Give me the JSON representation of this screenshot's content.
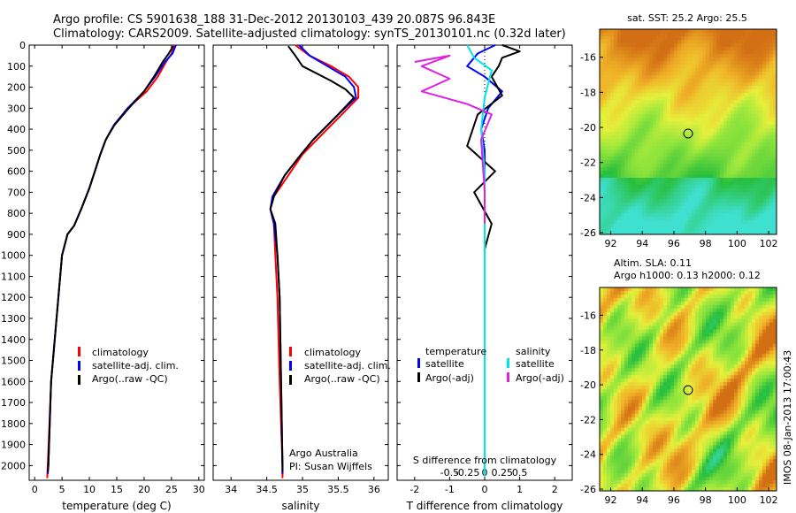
{
  "header": {
    "line1": "Argo profile: CS 5901638_188 31-Dec-2012 20130103_439 20.087S 96.843E",
    "line2": "Climatology: CARS2009. Satellite-adjusted climatology: synTS_20130101.nc (0.32d later)"
  },
  "side_text": "IMOS 08-Jan-2013 17:00:43",
  "colors": {
    "climatology": "#ff0000",
    "satellite": "#0000ff",
    "argo": "#000000",
    "sal_satellite": "#00e5e5",
    "sal_argo": "#e020e0"
  },
  "chart_data": [
    {
      "type": "line",
      "panel": "temperature",
      "xlabel": "temperature (deg C)",
      "ylabel": "",
      "xlim": [
        -1,
        31
      ],
      "ylim": [
        2070,
        0
      ],
      "xticks": [
        0,
        5,
        10,
        15,
        20,
        25,
        30
      ],
      "xtick_labels": [
        "0",
        "5",
        "10",
        "15",
        "20",
        "25",
        "30"
      ],
      "yticks": [
        0,
        100,
        200,
        300,
        400,
        500,
        600,
        700,
        800,
        900,
        1000,
        1100,
        1200,
        1300,
        1400,
        1500,
        1600,
        1700,
        1800,
        1900,
        2000
      ],
      "ytick_labels": [
        "0",
        "100",
        "200",
        "300",
        "400",
        "500",
        "600",
        "700",
        "800",
        "900",
        "1000",
        "1100",
        "1200",
        "1300",
        "1400",
        "1500",
        "1600",
        "1700",
        "1800",
        "1900",
        "2000"
      ],
      "legend": [
        "climatology",
        "satellite-adj. clim.",
        "Argo(..raw -QC)"
      ],
      "series": [
        {
          "name": "climatology",
          "color": "#ff0000",
          "x": [
            25.5,
            25.0,
            24.0,
            22.5,
            20.5,
            17.0,
            14.5,
            13.0,
            12.0,
            11.0,
            10.0,
            8.5,
            7.2,
            6.0,
            5.0,
            3.0,
            2.4,
            2.3
          ],
          "y": [
            0,
            40,
            80,
            150,
            220,
            300,
            380,
            450,
            520,
            600,
            680,
            780,
            860,
            900,
            1000,
            1600,
            2000,
            2060
          ]
        },
        {
          "name": "satellite-adj. clim.",
          "color": "#0000ff",
          "x": [
            25.8,
            25.2,
            23.8,
            22.0,
            20.0,
            17.0,
            14.5,
            13.0,
            12.0,
            11.0,
            10.0,
            8.5,
            7.2,
            6.0,
            5.0,
            3.0,
            2.5,
            2.4
          ],
          "y": [
            0,
            40,
            80,
            150,
            220,
            300,
            380,
            450,
            520,
            600,
            680,
            780,
            860,
            900,
            1000,
            1600,
            2000,
            2040
          ]
        },
        {
          "name": "Argo(..raw -QC)",
          "color": "#000000",
          "x": [
            25.3,
            24.5,
            23.4,
            21.8,
            20.0,
            17.2,
            14.6,
            13.0,
            12.0,
            11.0,
            10.0,
            8.5,
            7.2,
            6.0,
            5.0,
            3.0,
            2.5,
            2.4
          ],
          "y": [
            5,
            40,
            80,
            150,
            220,
            300,
            380,
            450,
            520,
            600,
            680,
            780,
            860,
            900,
            1000,
            1600,
            2000,
            2030
          ]
        }
      ]
    },
    {
      "type": "line",
      "panel": "salinity",
      "xlabel": "salinity",
      "xlim": [
        33.75,
        36.2
      ],
      "ylim": [
        2070,
        0
      ],
      "xticks": [
        34,
        34.5,
        35,
        35.5,
        36
      ],
      "xtick_labels": [
        "34",
        "34.5",
        "35",
        "35.5",
        "36"
      ],
      "legend": [
        "climatology",
        "satellite-adj. clim.",
        "Argo(..raw -QC)"
      ],
      "annotation": [
        "Argo Australia",
        "PI: Susan Wijffels"
      ],
      "series": [
        {
          "name": "climatology",
          "color": "#ff0000",
          "x": [
            34.9,
            35.1,
            35.4,
            35.65,
            35.78,
            35.78,
            35.55,
            35.2,
            35.0,
            34.8,
            34.6,
            34.55,
            34.6,
            34.62,
            34.65,
            34.68,
            34.72,
            34.72
          ],
          "y": [
            0,
            50,
            100,
            150,
            200,
            250,
            330,
            450,
            520,
            620,
            720,
            780,
            850,
            1000,
            1200,
            1600,
            2000,
            2060
          ]
        },
        {
          "name": "satellite-adj. clim.",
          "color": "#0000ff",
          "x": [
            34.95,
            35.1,
            35.35,
            35.6,
            35.72,
            35.75,
            35.5,
            35.15,
            34.98,
            34.75,
            34.58,
            34.55,
            34.6,
            34.65,
            34.68,
            34.7,
            34.72,
            34.72
          ],
          "y": [
            0,
            50,
            100,
            150,
            200,
            250,
            330,
            450,
            520,
            620,
            720,
            780,
            850,
            1000,
            1200,
            1600,
            2000,
            2040
          ]
        },
        {
          "name": "Argo(..raw -QC)",
          "color": "#000000",
          "x": [
            34.8,
            34.9,
            35.0,
            35.4,
            35.6,
            35.72,
            35.5,
            35.15,
            34.98,
            34.75,
            34.6,
            34.55,
            34.62,
            34.65,
            34.68,
            34.7,
            34.72,
            34.72
          ],
          "y": [
            5,
            50,
            100,
            170,
            210,
            250,
            330,
            450,
            520,
            620,
            720,
            780,
            850,
            1000,
            1200,
            1600,
            2000,
            2030
          ]
        }
      ]
    },
    {
      "type": "line",
      "panel": "difference",
      "xlabel": "T difference from climatology",
      "top_label": "S difference from climatology",
      "xlim": [
        -2.5,
        2.5
      ],
      "ylim": [
        2070,
        0
      ],
      "xticks": [
        -2,
        -1,
        0,
        1,
        2
      ],
      "xtick_labels": [
        "-2",
        "-1",
        "0",
        "1",
        "2"
      ],
      "s_ticks": [
        -0.5,
        -0.25,
        0,
        0.25,
        0.5
      ],
      "s_tick_labels": [
        "-0.5",
        "-0.25",
        "0",
        "0.25",
        "0.5"
      ],
      "legend_temperature_title": "temperature",
      "legend_salinity_title": "salinity",
      "legend_temperature": [
        "satellite",
        "Argo(-adj)"
      ],
      "legend_salinity": [
        "satellite",
        "Argo(-adj)"
      ],
      "series": [
        {
          "name": "satellite",
          "color": "#0000ff",
          "x": [
            0.3,
            -0.2,
            -0.5,
            0.0,
            0.5,
            0.1,
            -0.1,
            0.0,
            0.0,
            0.0,
            0.0,
            0.0,
            0.0
          ],
          "y": [
            0,
            40,
            100,
            150,
            220,
            300,
            400,
            500,
            700,
            900,
            1200,
            1600,
            2000
          ]
        },
        {
          "name": "Argo(-adj)",
          "color": "#000000",
          "x": [
            0.5,
            1.0,
            0.5,
            0.4,
            0.2,
            0.5,
            -0.2,
            -0.5,
            0.3,
            -0.3,
            0.2,
            0.0,
            0.0
          ],
          "y": [
            0,
            30,
            60,
            100,
            150,
            240,
            330,
            480,
            600,
            700,
            850,
            970,
            2050
          ]
        },
        {
          "name": "satellite",
          "color": "#00e5e5",
          "x": [
            -0.5,
            -0.3,
            0.2,
            0.0,
            -0.1,
            0.0,
            0.0,
            0.0,
            0.0,
            0.0
          ],
          "y": [
            0,
            60,
            120,
            250,
            400,
            600,
            900,
            1300,
            1700,
            2050
          ]
        },
        {
          "name": "Argo(-adj)",
          "color": "#e020e0",
          "x": [
            -2.0,
            -1.0,
            -1.8,
            -1.0,
            -1.8,
            -0.5,
            0.2,
            -0.1,
            0.0,
            0.0
          ],
          "y": [
            80,
            50,
            100,
            160,
            220,
            280,
            330,
            450,
            700,
            850
          ]
        }
      ]
    },
    {
      "type": "heatmap",
      "panel": "sst_map",
      "title": "sat. SST: 25.2 Argo: 25.5",
      "xticks": [
        92,
        94,
        96,
        98,
        100,
        102
      ],
      "yticks": [
        -16,
        -18,
        -20,
        -22,
        -24,
        -26
      ],
      "xlim": [
        91.3,
        102.5
      ],
      "ylim": [
        -26.1,
        -14.4
      ],
      "marker": {
        "lon": 96.843,
        "lat": -20.087
      }
    },
    {
      "type": "heatmap",
      "panel": "sla_map",
      "title_line1": "Altim. SLA: 0.11",
      "title_line2": "Argo h1000: 0.13 h2000: 0.12",
      "xticks": [
        92,
        94,
        96,
        98,
        100,
        102
      ],
      "yticks": [
        -16,
        -18,
        -20,
        -22,
        -24,
        -26
      ],
      "xlim": [
        91.3,
        102.5
      ],
      "ylim": [
        -26.1,
        -14.4
      ],
      "marker": {
        "lon": 96.843,
        "lat": -20.087
      }
    }
  ]
}
